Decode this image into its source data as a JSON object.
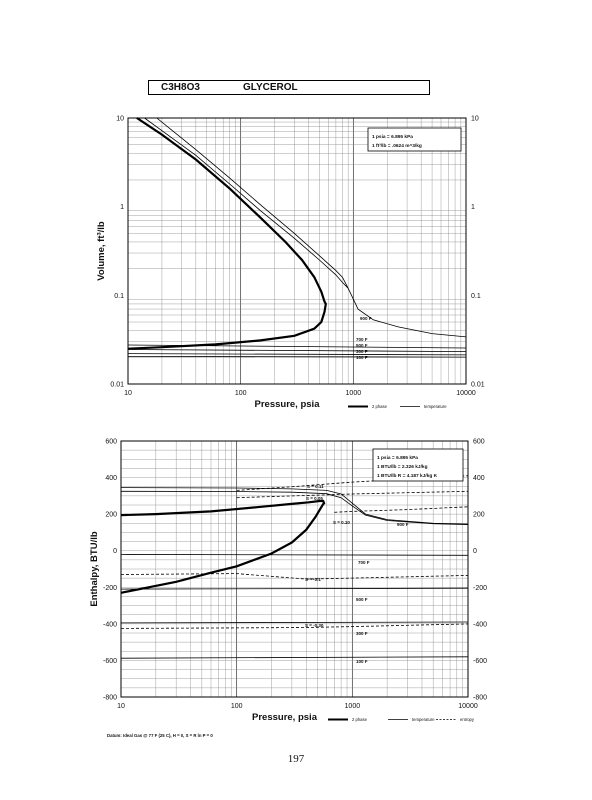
{
  "title_box": {
    "formula": "C3H8O3",
    "name": "GLYCEROL"
  },
  "page_number": "197",
  "chart_data": [
    {
      "type": "line",
      "xscale": "log",
      "yscale": "log",
      "xlim": [
        10,
        10000
      ],
      "ylim": [
        0.01,
        10
      ],
      "grid": true,
      "xlabel": "Pressure,  psia",
      "ylabel": "Volume,  ft^3/lb",
      "xticks": [
        "10",
        "100",
        "1000",
        "10000"
      ],
      "yticks": [
        "0.01",
        "0.1",
        "1",
        "10"
      ],
      "yticks_right": [
        "0.01",
        "0.1",
        "1",
        "10"
      ],
      "conversions": [
        "1 psia  =  6.895 kPa",
        "1 ft^3/lb  =  .0624 m^3/kg"
      ],
      "legend": [
        "2 phase",
        "temperature"
      ],
      "series": [
        {
          "name": "2 phase",
          "style": "thick",
          "x": [
            12,
            20,
            40,
            80,
            150,
            250,
            350,
            450,
            520,
            555,
            570,
            555,
            520,
            450,
            300,
            150,
            60,
            20,
            10
          ],
          "y": [
            10,
            6.5,
            3.4,
            1.6,
            0.75,
            0.4,
            0.25,
            0.16,
            0.11,
            0.085,
            0.08,
            0.065,
            0.05,
            0.042,
            0.035,
            0.031,
            0.028,
            0.026,
            0.025
          ]
        },
        {
          "name": "temperature",
          "style": "thin",
          "label": "900 F",
          "x": [
            18,
            40,
            80,
            150,
            300,
            500,
            700,
            800,
            900,
            1100,
            1500,
            2500,
            5000,
            10000
          ],
          "y": [
            10,
            4.4,
            2.1,
            1.05,
            0.5,
            0.28,
            0.19,
            0.16,
            0.12,
            0.07,
            0.053,
            0.044,
            0.037,
            0.034
          ]
        },
        {
          "name": "temperature",
          "style": "thin",
          "x": [
            14,
            40,
            80,
            150,
            300,
            500,
            700,
            800,
            900
          ],
          "y": [
            10,
            3.8,
            1.8,
            0.9,
            0.44,
            0.25,
            0.17,
            0.14,
            0.12
          ]
        },
        {
          "name": "temperature",
          "style": "thin",
          "label": "700 F",
          "x": [
            10,
            10000
          ],
          "y": [
            0.0275,
            0.0255
          ]
        },
        {
          "name": "temperature",
          "style": "thin",
          "label": "500 F",
          "x": [
            10,
            10000
          ],
          "y": [
            0.0245,
            0.0232
          ]
        },
        {
          "name": "temperature",
          "style": "thin",
          "label": "300 F",
          "x": [
            10,
            10000
          ],
          "y": [
            0.022,
            0.0213
          ]
        },
        {
          "name": "temperature",
          "style": "thin",
          "label": "100 F",
          "x": [
            10,
            10000
          ],
          "y": [
            0.0205,
            0.0201
          ]
        }
      ]
    },
    {
      "type": "line",
      "xscale": "log",
      "yscale": "linear",
      "xlim": [
        10,
        10000
      ],
      "ylim": [
        -800,
        600
      ],
      "grid": true,
      "xlabel": "Pressure,  psia",
      "ylabel": "Enthalpy,  BTU/lb",
      "xticks": [
        "10",
        "100",
        "1000",
        "10000"
      ],
      "yticks": [
        "-800",
        "-600",
        "-400",
        "-200",
        "0",
        "200",
        "400",
        "600"
      ],
      "yticks_right": [
        "-800",
        "-600",
        "-400",
        "-200",
        "0",
        "200",
        "400",
        "600"
      ],
      "conversions": [
        "1 psia  =  6.895 kPa",
        "1 BTU/lb  =  2.326 kJ/kg",
        "1 BTU/lb R  =  4.187 kJ/kg K"
      ],
      "legend": [
        "2 phase",
        "temperature",
        "entropy"
      ],
      "footnote": "Datum: Ideal Gas @ 77 F (25 C),  H  =  0,  S  =  R ln P  =  0",
      "series": [
        {
          "name": "2 phase",
          "style": "thick",
          "x": [
            10,
            30,
            60,
            100,
            200,
            300,
            400,
            480,
            530,
            560,
            570,
            560,
            520,
            420,
            300,
            150,
            60,
            20,
            10
          ],
          "y": [
            -230,
            -170,
            -120,
            -85,
            -15,
            45,
            115,
            185,
            230,
            255,
            260,
            272,
            272,
            265,
            256,
            238,
            215,
            200,
            195
          ]
        },
        {
          "name": "temperature",
          "style": "thin",
          "label": "900 F",
          "x": [
            10,
            100,
            300,
            600,
            800,
            1000,
            1300,
            2000,
            5000,
            10000
          ],
          "y": [
            345,
            343,
            338,
            330,
            310,
            260,
            200,
            170,
            150,
            145
          ]
        },
        {
          "name": "temperature",
          "style": "thin",
          "x": [
            10,
            100,
            300,
            600,
            800,
            1000,
            1300,
            2000,
            5000,
            10000
          ],
          "y": [
            325,
            324,
            320,
            312,
            290,
            245,
            195,
            165,
            148,
            143
          ]
        },
        {
          "name": "temperature",
          "style": "thin",
          "label": "700 F",
          "x": [
            10,
            10000
          ],
          "y": [
            -20,
            -25
          ]
        },
        {
          "name": "temperature",
          "style": "thin",
          "label": "500 F",
          "x": [
            10,
            10000
          ],
          "y": [
            -210,
            -205
          ]
        },
        {
          "name": "temperature",
          "style": "thin",
          "label": "300 F",
          "x": [
            10,
            10000
          ],
          "y": [
            -395,
            -390
          ]
        },
        {
          "name": "temperature",
          "style": "thin",
          "label": "100 F",
          "x": [
            10,
            10000
          ],
          "y": [
            -588,
            -580
          ]
        },
        {
          "name": "entropy",
          "style": "dashed",
          "label": "S = 0.11",
          "x": [
            100,
            300,
            1000,
            10000
          ],
          "y": [
            330,
            350,
            375,
            410
          ]
        },
        {
          "name": "entropy",
          "style": "dashed",
          "label": "S = 0.05",
          "x": [
            100,
            300,
            1000,
            10000
          ],
          "y": [
            290,
            300,
            310,
            325
          ]
        },
        {
          "name": "entropy",
          "style": "dashed",
          "label": "S = 0.10",
          "x": [
            700,
            1000,
            3000,
            10000
          ],
          "y": [
            210,
            215,
            225,
            240
          ]
        },
        {
          "name": "entropy",
          "style": "dashed",
          "label": "S = -0.1",
          "x": [
            10,
            100,
            400,
            1000,
            10000
          ],
          "y": [
            -130,
            -125,
            -155,
            -150,
            -135
          ]
        },
        {
          "name": "entropy",
          "style": "dashed",
          "label": "S = -0.30",
          "x": [
            10,
            100,
            400,
            1000,
            10000
          ],
          "y": [
            -425,
            -422,
            -420,
            -415,
            -400
          ]
        }
      ]
    }
  ]
}
